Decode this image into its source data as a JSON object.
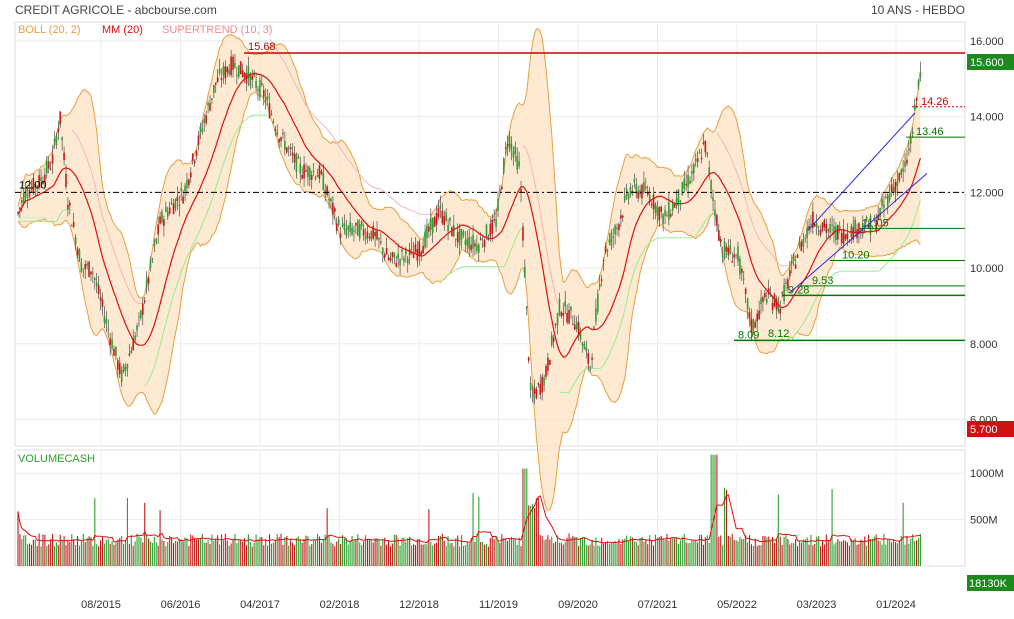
{
  "header": {
    "title": "CREDIT AGRICOLE - abcbourse.com",
    "period": "10 ANS - HEBDO"
  },
  "legend": [
    {
      "label": "BOLL (20, 2)",
      "color": "#e8a040"
    },
    {
      "label": "MM (20)",
      "color": "#dd1111"
    },
    {
      "label": "SUPERTREND (10, 3)",
      "color": "#f08c8c"
    }
  ],
  "badges": {
    "last_price": "15.600",
    "low_price": "5.700",
    "last_volume": "18130K"
  },
  "volume_panel": {
    "title": "VOLUMECASH"
  },
  "colors": {
    "up": "#2e9e2e",
    "down": "#c41a1a",
    "boll": "#e8a040",
    "boll_fill": "#fde3c4",
    "mm": "#dd1111",
    "supertrend_bull": "#90ee90",
    "supertrend_bear": "#f5b5b5",
    "channel": "#2a2ae0",
    "resistance": "#cc0000",
    "support": "#007700",
    "price_badge": "#1e8a1e",
    "low_badge": "#d01010"
  },
  "chart_data": {
    "type": "candlestick",
    "y_ticks": [
      "16.000",
      "14.000",
      "12.000",
      "10.000",
      "8.000",
      "6.000"
    ],
    "ylim": [
      5.3,
      16.5
    ],
    "volume_ticks": [
      "1000M",
      "500M"
    ],
    "volume_ylim": [
      0,
      1250
    ],
    "x_ticks": [
      "08/2015",
      "06/2016",
      "04/2017",
      "02/2018",
      "12/2018",
      "11/2019",
      "09/2020",
      "07/2021",
      "05/2022",
      "03/2023",
      "01/2024"
    ],
    "anchors": [
      [
        0,
        11.1
      ],
      [
        10,
        10.8
      ],
      [
        25,
        12.0
      ],
      [
        40,
        12.3
      ],
      [
        52,
        12.8
      ],
      [
        60,
        14.0
      ],
      [
        68,
        11.8
      ],
      [
        82,
        10.0
      ],
      [
        92,
        10.0
      ],
      [
        106,
        8.6
      ],
      [
        122,
        7.1
      ],
      [
        140,
        8.6
      ],
      [
        160,
        11.2
      ],
      [
        170,
        11.6
      ],
      [
        184,
        12.0
      ],
      [
        200,
        13.5
      ],
      [
        216,
        14.9
      ],
      [
        232,
        15.4
      ],
      [
        248,
        15.1
      ],
      [
        264,
        14.6
      ],
      [
        280,
        13.5
      ],
      [
        300,
        12.6
      ],
      [
        320,
        12.5
      ],
      [
        340,
        11.0
      ],
      [
        360,
        11.0
      ],
      [
        374,
        10.9
      ],
      [
        390,
        10.2
      ],
      [
        405,
        10.3
      ],
      [
        420,
        10.5
      ],
      [
        440,
        11.5
      ],
      [
        458,
        10.8
      ],
      [
        478,
        10.6
      ],
      [
        496,
        11.2
      ],
      [
        508,
        13.5
      ],
      [
        520,
        12.6
      ],
      [
        531,
        6.5
      ],
      [
        545,
        7.1
      ],
      [
        560,
        9.0
      ],
      [
        576,
        8.6
      ],
      [
        590,
        7.4
      ],
      [
        604,
        10.4
      ],
      [
        616,
        11.0
      ],
      [
        630,
        12.1
      ],
      [
        648,
        12.0
      ],
      [
        664,
        11.3
      ],
      [
        680,
        11.9
      ],
      [
        695,
        12.6
      ],
      [
        705,
        13.3
      ],
      [
        712,
        12.0
      ],
      [
        722,
        10.5
      ],
      [
        738,
        10.3
      ],
      [
        752,
        8.4
      ],
      [
        766,
        9.3
      ],
      [
        780,
        9.0
      ],
      [
        795,
        10.2
      ],
      [
        812,
        11.3
      ],
      [
        828,
        11.0
      ],
      [
        846,
        10.9
      ],
      [
        860,
        11.1
      ],
      [
        874,
        11.1
      ],
      [
        890,
        12.0
      ],
      [
        905,
        12.6
      ],
      [
        912,
        13.5
      ],
      [
        922,
        15.6
      ]
    ],
    "series": [
      {
        "name": "BOLL (20, 2)",
        "kind": "bollinger"
      },
      {
        "name": "MM (20)",
        "kind": "moving_average"
      },
      {
        "name": "SUPERTREND (10, 3)",
        "kind": "supertrend"
      }
    ],
    "annotations": [
      {
        "label": "15.68",
        "value": 15.68,
        "type": "resistance",
        "color": "#cc0000"
      },
      {
        "label": "12.00",
        "value": 12.0,
        "type": "reference",
        "color": "#000000"
      },
      {
        "label": "14.26",
        "value": 14.26,
        "type": "level",
        "color": "#cc0000"
      },
      {
        "label": "13.46",
        "value": 13.46,
        "type": "support",
        "color": "#007700"
      },
      {
        "label": "11.05",
        "value": 11.05,
        "type": "support",
        "color": "#007700"
      },
      {
        "label": "10.20",
        "value": 10.2,
        "type": "support",
        "color": "#007700"
      },
      {
        "label": "9.53",
        "value": 9.53,
        "type": "support",
        "color": "#007700"
      },
      {
        "label": "9.28",
        "value": 9.28,
        "type": "support",
        "color": "#007700"
      },
      {
        "label": "8.09",
        "value": 8.09,
        "type": "support",
        "color": "#007700"
      },
      {
        "label": "8.12",
        "value": 8.12,
        "type": "support",
        "color": "#007700"
      }
    ]
  }
}
